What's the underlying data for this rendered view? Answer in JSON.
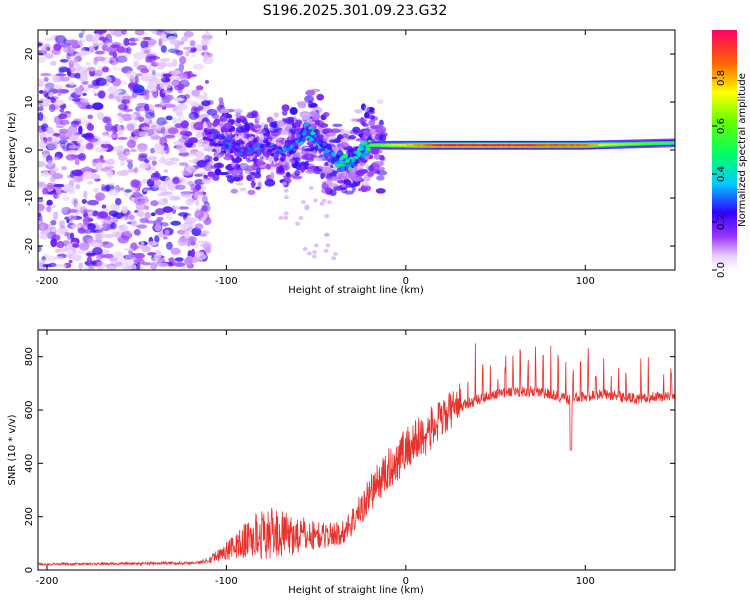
{
  "title": "S196.2025.301.09.23.G32",
  "chart_data": [
    {
      "type": "heatmap",
      "xlabel": "Height of straight line (km)",
      "ylabel": "Frequency (Hz)",
      "xlim": [
        -205,
        150
      ],
      "ylim": [
        -25,
        25
      ],
      "x_ticks": [
        "-200",
        "-100",
        "0",
        "100"
      ],
      "y_ticks": [
        "-20",
        "-10",
        "0",
        "10",
        "20"
      ],
      "noise_region_km": [
        -205,
        -110
      ],
      "ridge": {
        "x": [
          -110,
          -100,
          -90,
          -80,
          -70,
          -60,
          -55,
          -50,
          -45,
          -40,
          -35,
          -30,
          -25,
          -20,
          -10,
          0,
          10,
          20,
          40,
          60,
          80,
          100,
          120,
          150
        ],
        "freq": [
          3,
          1.5,
          0,
          1,
          -1,
          2,
          4,
          3,
          0,
          -1.5,
          -2.5,
          -2.5,
          0,
          1,
          1,
          1,
          1,
          1,
          1,
          1,
          1,
          1,
          1.2,
          1.5
        ],
        "peak": [
          0.25,
          0.3,
          0.3,
          0.3,
          0.3,
          0.35,
          0.4,
          0.4,
          0.35,
          0.4,
          0.5,
          0.5,
          0.55,
          0.6,
          0.7,
          0.8,
          0.9,
          1.0,
          1.0,
          1.0,
          0.95,
          0.9,
          0.7,
          0.55
        ]
      },
      "colorbar": {
        "label": "Normalized spectral amplitude",
        "ticks": [
          "0.0",
          "0.2",
          "0.4",
          "0.6",
          "0.8"
        ],
        "range": [
          0,
          1
        ]
      }
    },
    {
      "type": "line",
      "xlabel": "Height of straight line (km)",
      "ylabel": "SNR (10 * v/v)",
      "xlim": [
        -205,
        150
      ],
      "ylim": [
        0,
        900
      ],
      "x_ticks": [
        "-200",
        "-100",
        "0",
        "100"
      ],
      "y_ticks": [
        "0",
        "200",
        "400",
        "600",
        "800"
      ],
      "color": "#e8312b",
      "series": [
        {
          "name": "SNR",
          "x": [
            -205,
            -150,
            -115,
            -105,
            -95,
            -85,
            -75,
            -65,
            -55,
            -45,
            -35,
            -25,
            -20,
            -10,
            0,
            10,
            20,
            30,
            40,
            50,
            60,
            70,
            80,
            90,
            100,
            110,
            120,
            130,
            140,
            150
          ],
          "base": [
            20,
            22,
            25,
            45,
            70,
            90,
            100,
            100,
            105,
            110,
            120,
            200,
            260,
            340,
            420,
            470,
            530,
            610,
            640,
            660,
            670,
            670,
            660,
            640,
            650,
            660,
            650,
            640,
            650,
            650
          ],
          "spread": [
            8,
            10,
            12,
            30,
            60,
            110,
            120,
            100,
            80,
            60,
            60,
            80,
            90,
            100,
            110,
            110,
            100,
            80,
            70,
            60,
            60,
            60,
            60,
            60,
            60,
            60,
            60,
            60,
            60,
            60
          ]
        }
      ]
    }
  ]
}
